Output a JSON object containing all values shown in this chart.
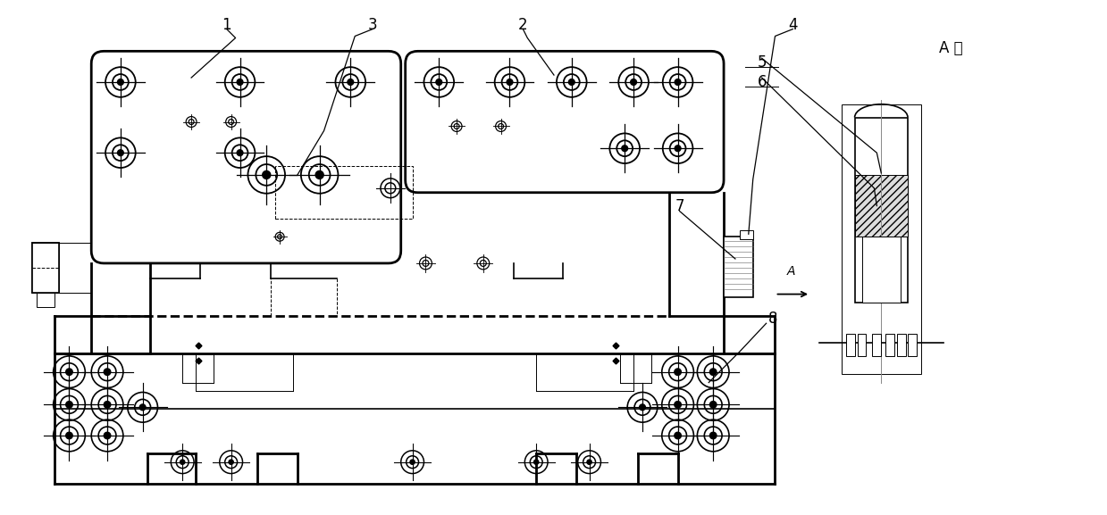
{
  "bg_color": "#ffffff",
  "line_color": "#000000",
  "figsize": [
    12.39,
    5.77
  ],
  "dpi": 100,
  "lw_thick": 2.0,
  "lw_med": 1.2,
  "lw_thin": 0.7
}
